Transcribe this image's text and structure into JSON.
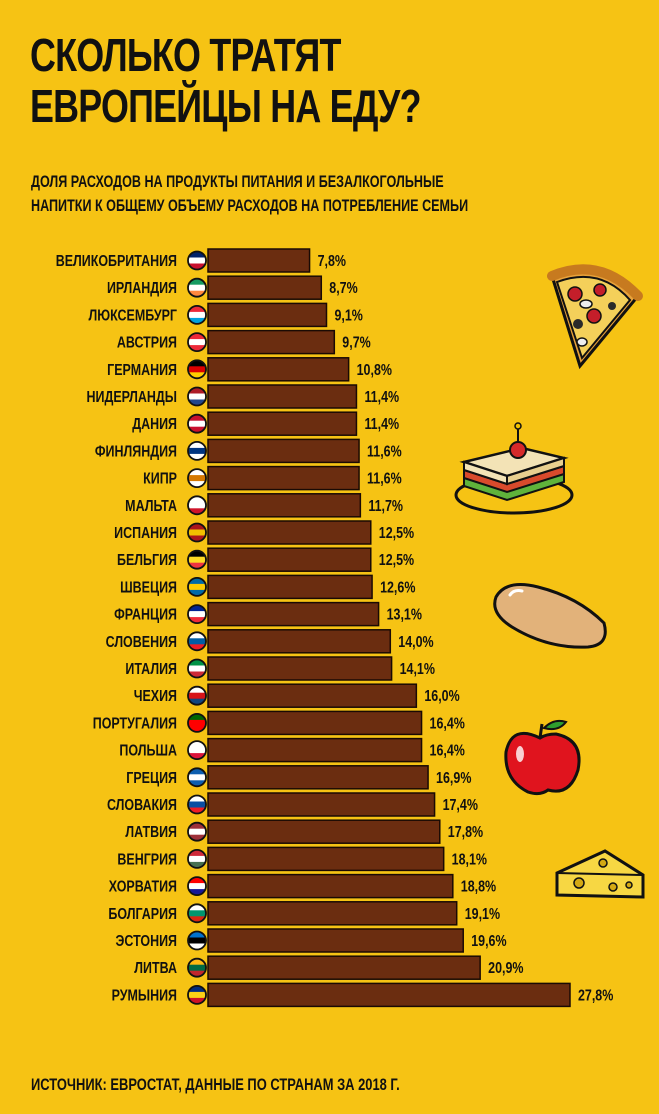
{
  "title_line1": "СКОЛЬКО ТРАТЯТ",
  "title_line2": "ЕВРОПЕЙЦЫ НА ЕДУ?",
  "subtitle_line1": "ДОЛЯ РАСХОДОВ НА ПРОДУКТЫ  ПИТАНИЯ И БЕЗАЛКОГОЛЬНЫЕ",
  "subtitle_line2": "НАПИТКИ К ОБЩЕМУ ОБЪЕМУ РАСХОДОВ НА ПОТРЕБЛЕНИЕ СЕМЬИ",
  "source": "ИСТОЧНИК: ЕВРОСТАТ, ДАННЫЕ ПО СТРАНАМ ЗА 2018 Г.",
  "colors": {
    "background": "#f6c314",
    "bar": "#6b2d10",
    "bar_outline": "#1a0a04"
  },
  "icons": [
    "pizza-icon",
    "sandwich-icon",
    "bread-icon",
    "apple-icon",
    "cheese-icon"
  ],
  "chart_data": {
    "type": "bar",
    "orientation": "horizontal",
    "categories": [
      "ВЕЛИКОБРИТАНИЯ",
      "ИРЛАНДИЯ",
      "ЛЮКСЕМБУРГ",
      "АВСТРИЯ",
      "ГЕРМАНИЯ",
      "НИДЕРЛАНДЫ",
      "ДАНИЯ",
      "ФИНЛЯНДИЯ",
      "КИПР",
      "МАЛЬТА",
      "ИСПАНИЯ",
      "БЕЛЬГИЯ",
      "ШВЕЦИЯ",
      "ФРАНЦИЯ",
      "СЛОВЕНИЯ",
      "ИТАЛИЯ",
      "ЧЕХИЯ",
      "ПОРТУГАЛИЯ",
      "ПОЛЬША",
      "ГРЕЦИЯ",
      "СЛОВАКИЯ",
      "ЛАТВИЯ",
      "ВЕНГРИЯ",
      "ХОРВАТИЯ",
      "БОЛГАРИЯ",
      "ЭСТОНИЯ",
      "ЛИТВА",
      "РУМЫНИЯ"
    ],
    "values": [
      7.8,
      8.7,
      9.1,
      9.7,
      10.8,
      11.4,
      11.4,
      11.6,
      11.6,
      11.7,
      12.5,
      12.5,
      12.6,
      13.1,
      14.0,
      14.1,
      16.0,
      16.4,
      16.4,
      16.9,
      17.4,
      17.8,
      18.1,
      18.8,
      19.1,
      19.6,
      20.9,
      27.8
    ],
    "value_labels": [
      "7,8%",
      "8,7%",
      "9,1%",
      "9,7%",
      "10,8%",
      "11,4%",
      "11,4%",
      "11,6%",
      "11,6%",
      "11,7%",
      "12,5%",
      "12,5%",
      "12,6%",
      "13,1%",
      "14,0%",
      "14,1%",
      "16,0%",
      "16,4%",
      "16,4%",
      "16,9%",
      "17,4%",
      "17,8%",
      "18,1%",
      "18,8%",
      "19,1%",
      "19,6%",
      "20,9%",
      "27,8%"
    ],
    "flags": [
      [
        "#012169",
        "#ffffff",
        "#c8102e"
      ],
      [
        "#169b62",
        "#ffffff",
        "#ff883e"
      ],
      [
        "#ed2939",
        "#ffffff",
        "#00a1de"
      ],
      [
        "#ed2939",
        "#ffffff",
        "#ed2939"
      ],
      [
        "#000000",
        "#dd0000",
        "#ffce00"
      ],
      [
        "#ae1c28",
        "#ffffff",
        "#21468b"
      ],
      [
        "#c8102e",
        "#ffffff",
        "#c8102e"
      ],
      [
        "#ffffff",
        "#003580",
        "#ffffff"
      ],
      [
        "#ffffff",
        "#d57800",
        "#ffffff"
      ],
      [
        "#ffffff",
        "#ffffff",
        "#cf142b"
      ],
      [
        "#aa151b",
        "#f1bf00",
        "#aa151b"
      ],
      [
        "#000000",
        "#fdda24",
        "#ef3340"
      ],
      [
        "#006aa7",
        "#fecc00",
        "#006aa7"
      ],
      [
        "#002395",
        "#ffffff",
        "#ed2939"
      ],
      [
        "#ffffff",
        "#005da4",
        "#ed1c24"
      ],
      [
        "#009246",
        "#ffffff",
        "#ce2b37"
      ],
      [
        "#ffffff",
        "#d7141a",
        "#11457e"
      ],
      [
        "#006600",
        "#ff0000",
        "#ff0000"
      ],
      [
        "#ffffff",
        "#ffffff",
        "#dc143c"
      ],
      [
        "#0d5eaf",
        "#ffffff",
        "#0d5eaf"
      ],
      [
        "#ffffff",
        "#0b4ea2",
        "#ee1c25"
      ],
      [
        "#9e3039",
        "#ffffff",
        "#9e3039"
      ],
      [
        "#ce2939",
        "#ffffff",
        "#477050"
      ],
      [
        "#ff0000",
        "#ffffff",
        "#171796"
      ],
      [
        "#ffffff",
        "#00966e",
        "#d62612"
      ],
      [
        "#0072ce",
        "#000000",
        "#ffffff"
      ],
      [
        "#fdb913",
        "#006a44",
        "#c1272d"
      ],
      [
        "#002b7f",
        "#fcd116",
        "#ce1126"
      ]
    ],
    "xlim": [
      0,
      30
    ],
    "grid": false,
    "legend": "none"
  }
}
